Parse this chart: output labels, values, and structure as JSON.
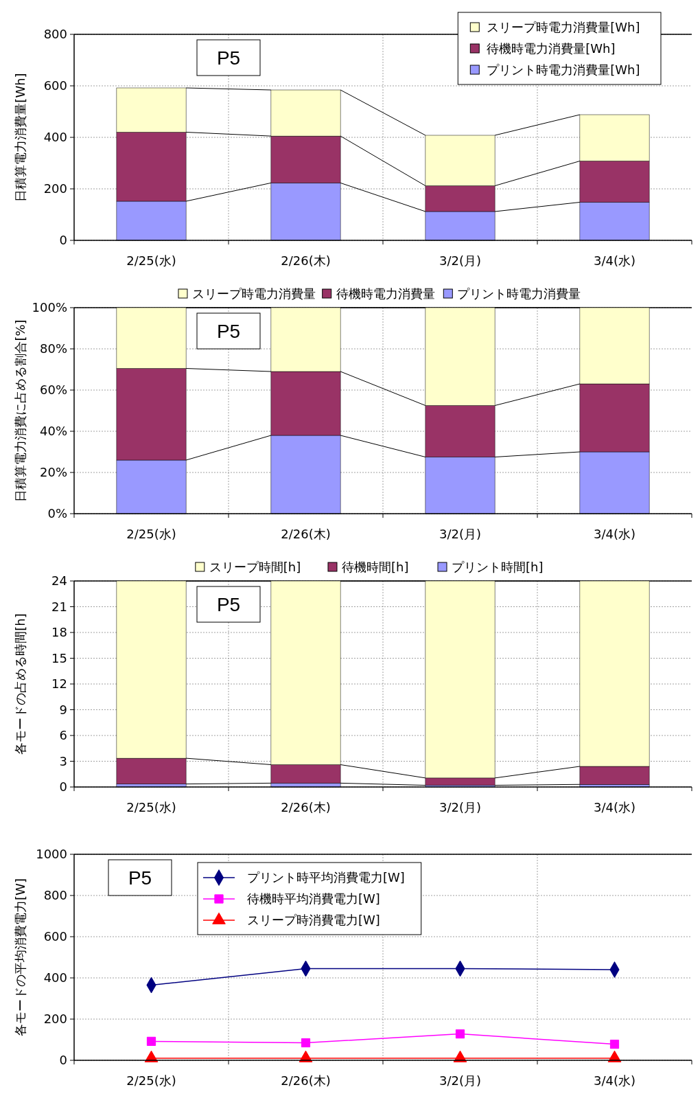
{
  "chart_data": [
    {
      "type": "bar",
      "stacked": true,
      "ylabel": "日積算電力消費量[Wh]",
      "annotations": [
        "P5"
      ],
      "categories": [
        "2/25(水)",
        "2/26(木)",
        "3/2(月)",
        "3/4(水)"
      ],
      "ylim": [
        0,
        800
      ],
      "yticks": [
        0,
        200,
        400,
        600,
        800
      ],
      "grid": true,
      "legend": "top right",
      "series": [
        {
          "name": "プリント時電力消費量[Wh]",
          "color": "#9999ff",
          "values": [
            152,
            223,
            112,
            148
          ]
        },
        {
          "name": "待機時電力消費量[Wh]",
          "color": "#993366",
          "values": [
            268,
            182,
            100,
            160
          ]
        },
        {
          "name": "スリープ時電力消費量[Wh]",
          "color": "#ffffcc",
          "values": [
            172,
            179,
            196,
            180
          ]
        }
      ]
    },
    {
      "type": "bar",
      "stacked": true,
      "ylabel": "日積算電力消費に占める割合[%]",
      "annotations": [
        "P5"
      ],
      "categories": [
        "2/25(水)",
        "2/26(木)",
        "3/2(月)",
        "3/4(水)"
      ],
      "ylim": [
        0,
        100
      ],
      "yticks": [
        {
          "value": 0,
          "label": "0%"
        },
        {
          "value": 20,
          "label": "20%"
        },
        {
          "value": 40,
          "label": "40%"
        },
        {
          "value": 60,
          "label": "60%"
        },
        {
          "value": 80,
          "label": "80%"
        },
        {
          "value": 100,
          "label": "100%"
        }
      ],
      "grid": true,
      "legend": "top",
      "series": [
        {
          "name": "プリント時電力消費量",
          "color": "#9999ff",
          "values": [
            26,
            38,
            27.5,
            30
          ]
        },
        {
          "name": "待機時電力消費量",
          "color": "#993366",
          "values": [
            44.5,
            31,
            25,
            33
          ]
        },
        {
          "name": "スリープ時電力消費量",
          "color": "#ffffcc",
          "values": [
            29.5,
            31,
            47.5,
            37
          ]
        }
      ]
    },
    {
      "type": "bar",
      "stacked": true,
      "ylabel": "各モードの占める時間[h]",
      "annotations": [
        "P5"
      ],
      "categories": [
        "2/25(水)",
        "2/26(木)",
        "3/2(月)",
        "3/4(水)"
      ],
      "ylim": [
        0,
        24
      ],
      "yticks": [
        0,
        3,
        6,
        9,
        12,
        15,
        18,
        21,
        24
      ],
      "grid": true,
      "legend": "top",
      "series": [
        {
          "name": "プリント時間[h]",
          "color": "#9999ff",
          "values": [
            0.35,
            0.45,
            0.2,
            0.3
          ]
        },
        {
          "name": "待機時間[h]",
          "color": "#993366",
          "values": [
            3.0,
            2.15,
            0.85,
            2.1
          ]
        },
        {
          "name": "スリープ時間[h]",
          "color": "#ffffcc",
          "values": [
            20.65,
            21.4,
            22.95,
            21.6
          ]
        }
      ]
    },
    {
      "type": "line",
      "ylabel": "各モードの平均消費電力[W]",
      "annotations": [
        "P5"
      ],
      "categories": [
        "2/25(水)",
        "2/26(木)",
        "3/2(月)",
        "3/4(水)"
      ],
      "ylim": [
        0,
        1000
      ],
      "yticks": [
        0,
        200,
        400,
        600,
        800,
        1000
      ],
      "grid": true,
      "legend": "top left",
      "series": [
        {
          "name": "プリント時平均消費電力[W]",
          "color": "#000080",
          "marker": "diamond",
          "values": [
            365,
            445,
            445,
            440
          ]
        },
        {
          "name": "待機時平均消費電力[W]",
          "color": "#ff00ff",
          "marker": "square",
          "values": [
            92,
            85,
            128,
            78
          ]
        },
        {
          "name": "スリープ時消費電力[W]",
          "color": "#ff0000",
          "marker": "triangle",
          "values": [
            10,
            10,
            10,
            10
          ]
        }
      ]
    }
  ]
}
